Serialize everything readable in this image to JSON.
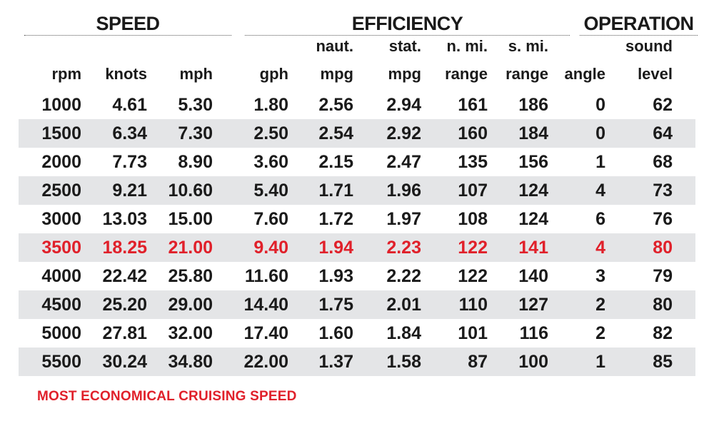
{
  "chart_data": {
    "type": "table",
    "groups": [
      {
        "name": "SPEED",
        "columns": [
          "rpm",
          "knots",
          "mph"
        ]
      },
      {
        "name": "EFFICIENCY",
        "columns": [
          "gph",
          "naut. mpg",
          "stat. mpg",
          "n. mi. range",
          "s. mi. range"
        ]
      },
      {
        "name": "OPERATION",
        "columns": [
          "angle",
          "sound level"
        ]
      }
    ],
    "columns": [
      {
        "key": "rpm",
        "lines": [
          "",
          "rpm"
        ]
      },
      {
        "key": "knots",
        "lines": [
          "",
          "knots"
        ]
      },
      {
        "key": "mph",
        "lines": [
          "",
          "mph"
        ]
      },
      {
        "key": "gph",
        "lines": [
          "",
          "gph"
        ]
      },
      {
        "key": "naut_mpg",
        "lines": [
          "naut.",
          "mpg"
        ]
      },
      {
        "key": "stat_mpg",
        "lines": [
          "stat.",
          "mpg"
        ]
      },
      {
        "key": "n_mi_range",
        "lines": [
          "n. mi.",
          "range"
        ]
      },
      {
        "key": "s_mi_range",
        "lines": [
          "s. mi.",
          "range"
        ]
      },
      {
        "key": "angle",
        "lines": [
          "",
          "angle"
        ]
      },
      {
        "key": "sound_level",
        "lines": [
          "sound",
          "level"
        ]
      }
    ],
    "rows": [
      [
        "1000",
        "4.61",
        "5.30",
        "1.80",
        "2.56",
        "2.94",
        "161",
        "186",
        "0",
        "62"
      ],
      [
        "1500",
        "6.34",
        "7.30",
        "2.50",
        "2.54",
        "2.92",
        "160",
        "184",
        "0",
        "64"
      ],
      [
        "2000",
        "7.73",
        "8.90",
        "3.60",
        "2.15",
        "2.47",
        "135",
        "156",
        "1",
        "68"
      ],
      [
        "2500",
        "9.21",
        "10.60",
        "5.40",
        "1.71",
        "1.96",
        "107",
        "124",
        "4",
        "73"
      ],
      [
        "3000",
        "13.03",
        "15.00",
        "7.60",
        "1.72",
        "1.97",
        "108",
        "124",
        "6",
        "76"
      ],
      [
        "3500",
        "18.25",
        "21.00",
        "9.40",
        "1.94",
        "2.23",
        "122",
        "141",
        "4",
        "80"
      ],
      [
        "4000",
        "22.42",
        "25.80",
        "11.60",
        "1.93",
        "2.22",
        "122",
        "140",
        "3",
        "79"
      ],
      [
        "4500",
        "25.20",
        "29.00",
        "14.40",
        "1.75",
        "2.01",
        "110",
        "127",
        "2",
        "80"
      ],
      [
        "5000",
        "27.81",
        "32.00",
        "17.40",
        "1.60",
        "1.84",
        "101",
        "116",
        "2",
        "82"
      ],
      [
        "5500",
        "30.24",
        "34.80",
        "22.00",
        "1.37",
        "1.58",
        "87",
        "100",
        "1",
        "85"
      ]
    ],
    "highlight_row": 5,
    "footnote": "MOST ECONOMICAL CRUISING SPEED"
  },
  "colors": {
    "text": "#1a1a1a",
    "highlight": "#e0202a",
    "band_shaded": "#e4e5e7",
    "band_plain": "#ffffff"
  }
}
